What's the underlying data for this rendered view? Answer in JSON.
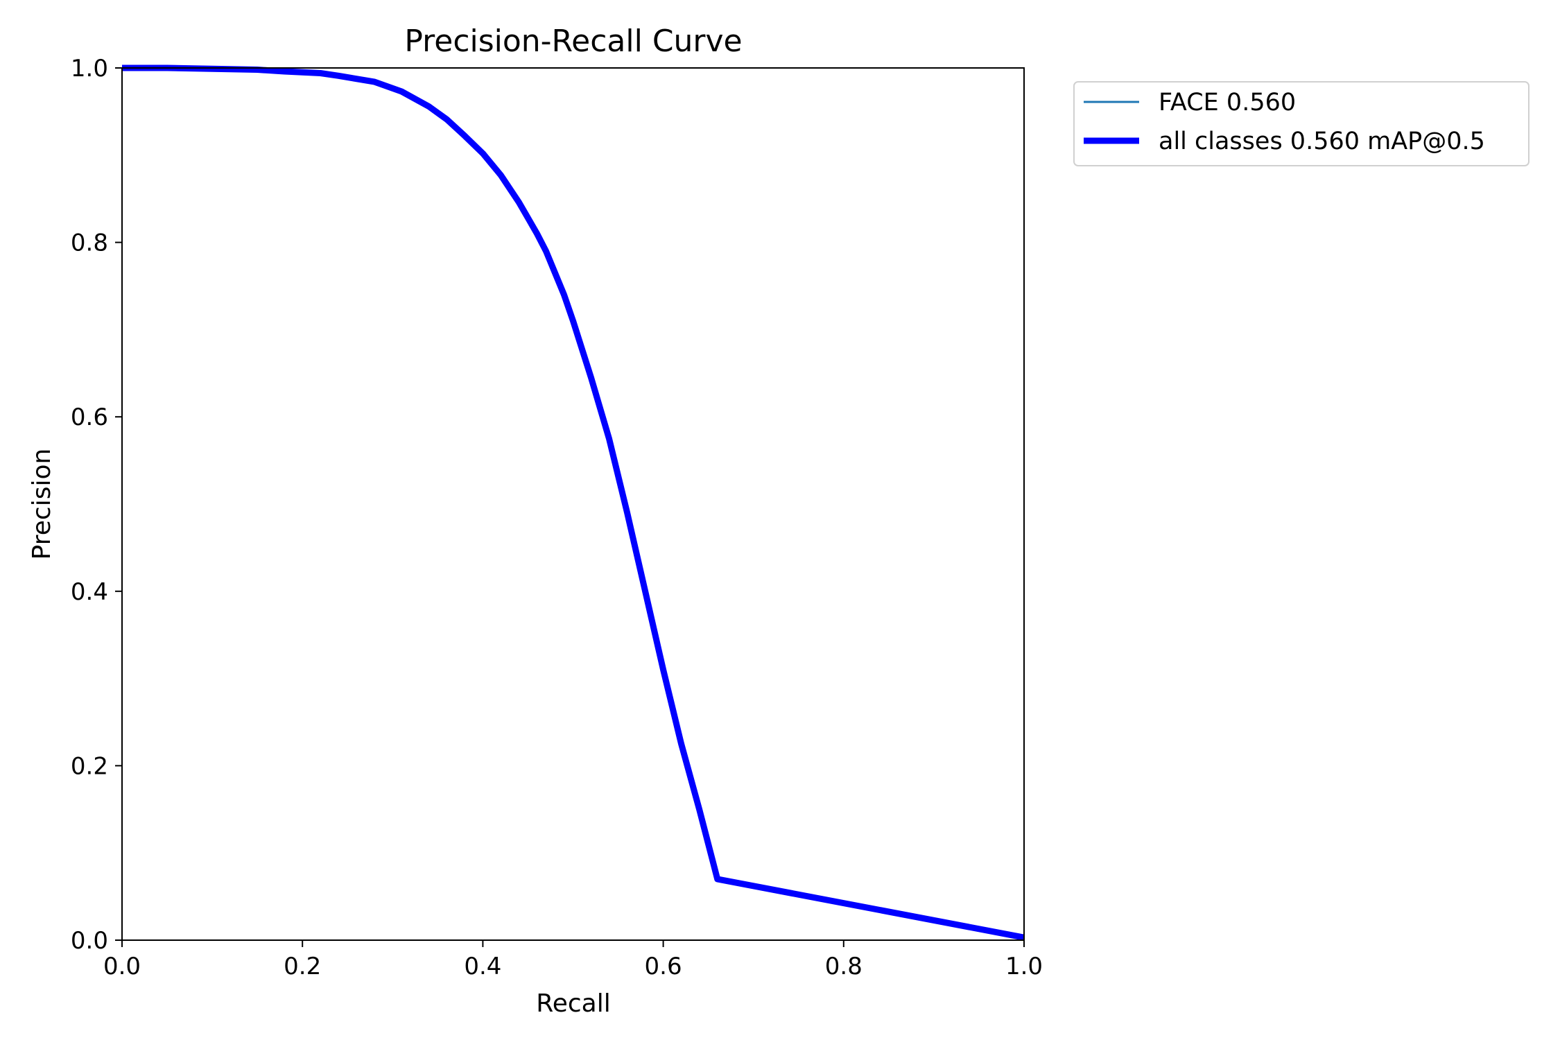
{
  "chart_data": {
    "type": "line",
    "title": "Precision-Recall Curve",
    "xlabel": "Recall",
    "ylabel": "Precision",
    "xlim": [
      0.0,
      1.0
    ],
    "ylim": [
      0.0,
      1.0
    ],
    "xticks": [
      "0.0",
      "0.2",
      "0.4",
      "0.6",
      "0.8",
      "1.0"
    ],
    "yticks": [
      "0.0",
      "0.2",
      "0.4",
      "0.6",
      "0.8",
      "1.0"
    ],
    "grid": false,
    "legend_position": "outside upper right",
    "series": [
      {
        "name": "FACE 0.560",
        "color": "#1f77b4",
        "x": [
          0.0,
          0.05,
          0.1,
          0.15,
          0.18,
          0.22,
          0.24,
          0.28,
          0.31,
          0.34,
          0.36,
          0.38,
          0.4,
          0.42,
          0.44,
          0.46,
          0.47,
          0.48,
          0.49,
          0.5,
          0.52,
          0.54,
          0.56,
          0.58,
          0.6,
          0.62,
          0.64,
          0.655,
          0.66,
          1.0
        ],
        "y": [
          1.0,
          1.0,
          0.999,
          0.998,
          0.996,
          0.994,
          0.991,
          0.984,
          0.973,
          0.956,
          0.941,
          0.922,
          0.902,
          0.877,
          0.846,
          0.81,
          0.79,
          0.765,
          0.74,
          0.71,
          0.645,
          0.575,
          0.49,
          0.4,
          0.31,
          0.225,
          0.15,
          0.09,
          0.07,
          0.003
        ]
      },
      {
        "name": "all classes 0.560 mAP@0.5",
        "color": "#0000ff",
        "x": [
          0.0,
          0.05,
          0.1,
          0.15,
          0.18,
          0.22,
          0.24,
          0.28,
          0.31,
          0.34,
          0.36,
          0.38,
          0.4,
          0.42,
          0.44,
          0.46,
          0.47,
          0.48,
          0.49,
          0.5,
          0.52,
          0.54,
          0.56,
          0.58,
          0.6,
          0.62,
          0.64,
          0.655,
          0.66,
          1.0
        ],
        "y": [
          1.0,
          1.0,
          0.999,
          0.998,
          0.996,
          0.994,
          0.991,
          0.984,
          0.973,
          0.956,
          0.941,
          0.922,
          0.902,
          0.877,
          0.846,
          0.81,
          0.79,
          0.765,
          0.74,
          0.71,
          0.645,
          0.575,
          0.49,
          0.4,
          0.31,
          0.225,
          0.15,
          0.09,
          0.07,
          0.003
        ]
      }
    ]
  }
}
